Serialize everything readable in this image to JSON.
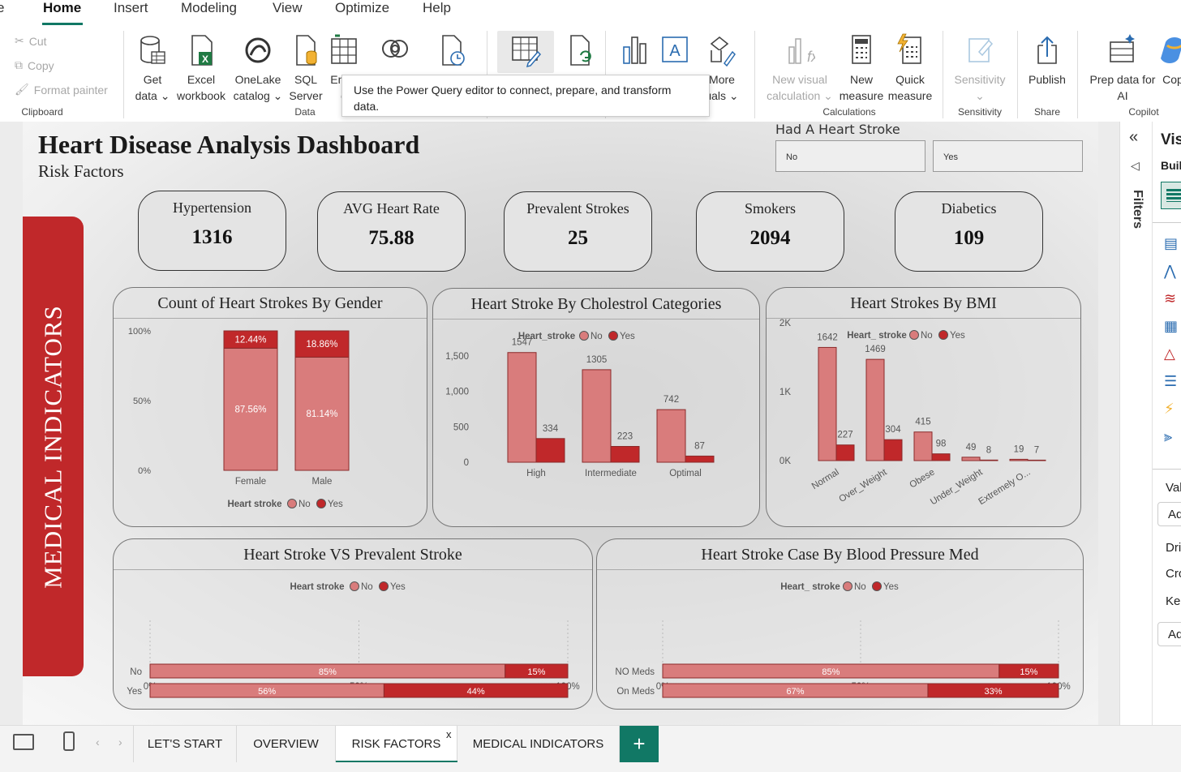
{
  "ribbon": {
    "tabs": [
      "Home",
      "Insert",
      "Modeling",
      "View",
      "Optimize",
      "Help"
    ],
    "clipboard": {
      "cut": "Cut",
      "copy": "Copy",
      "format_painter": "Format painter",
      "label": "Clipboard"
    },
    "data_group": {
      "get_data": [
        "Get",
        "data"
      ],
      "excel": [
        "Excel",
        "workbook"
      ],
      "onelake": [
        "OneLake",
        "catalog"
      ],
      "sql": [
        "SQL",
        "Server"
      ],
      "enter": [
        "Enter",
        "d"
      ],
      "label": "Data"
    },
    "calculations": {
      "new_visual_calc": [
        "New visual",
        "calculation"
      ],
      "new_measure": [
        "New",
        "measure"
      ],
      "quick_measure": [
        "Quick",
        "measure"
      ],
      "label": "Calculations"
    },
    "more_visuals": [
      "More",
      "uals"
    ],
    "sensitivity": {
      "button": "Sensitivity",
      "label": "Sensitivity"
    },
    "share": {
      "publish": "Publish",
      "label": "Share"
    },
    "copilot": {
      "prep": [
        "Prep data for",
        "AI"
      ],
      "cop": "Cop",
      "label": "Copilot"
    },
    "tooltip": "Use the Power Query editor to connect, prepare, and transform data."
  },
  "report": {
    "title": "Heart Disease Analysis Dashboard",
    "subtitle": "Risk Factors",
    "side_banner": "MEDICAL INDICATORS",
    "slicer": {
      "title": "Had A Heart Stroke",
      "options": [
        "No",
        "Yes"
      ]
    },
    "kpis": [
      {
        "label": "Hypertension",
        "value": "1316"
      },
      {
        "label": "AVG Heart Rate",
        "value": "75.88"
      },
      {
        "label": "Prevalent Strokes",
        "value": "25"
      },
      {
        "label": "Smokers",
        "value": "2094"
      },
      {
        "label": "Diabetics",
        "value": "109"
      }
    ],
    "colors": {
      "no": "#d97c7c",
      "yes": "#c0282a",
      "banner": "#c0282a"
    }
  },
  "chart_data": [
    {
      "type": "bar",
      "stacking": "percent",
      "title": "Count of Heart Strokes By Gender",
      "categories": [
        "Female",
        "Male"
      ],
      "series": [
        {
          "name": "No",
          "values": [
            87.56,
            81.14
          ]
        },
        {
          "name": "Yes",
          "values": [
            12.44,
            18.86
          ]
        }
      ],
      "yticks": [
        "0%",
        "50%",
        "100%"
      ],
      "legend_title": "Heart stroke",
      "legend_position": "bottom"
    },
    {
      "type": "bar",
      "title": "Heart Stroke By Cholestrol Categories",
      "categories": [
        "High",
        "Intermediate",
        "Optimal"
      ],
      "series": [
        {
          "name": "No",
          "values": [
            1547,
            1305,
            742
          ]
        },
        {
          "name": "Yes",
          "values": [
            334,
            223,
            87
          ]
        }
      ],
      "yticks": [
        "0",
        "500",
        "1,000",
        "1,500"
      ],
      "ylim": [
        0,
        1750
      ],
      "legend_title": "Heart_stroke",
      "legend_position": "top"
    },
    {
      "type": "bar",
      "title": "Heart Strokes By BMI",
      "categories": [
        "Normal",
        "Over_Weight",
        "Obese",
        "Under_Weight",
        "Extremely O..."
      ],
      "series": [
        {
          "name": "No",
          "values": [
            1642,
            1469,
            415,
            49,
            19
          ]
        },
        {
          "name": "Yes",
          "values": [
            227,
            304,
            98,
            8,
            7
          ]
        }
      ],
      "yticks": [
        "0K",
        "1K",
        "2K"
      ],
      "ylim": [
        0,
        2000
      ],
      "legend_title": "Heart_ stroke",
      "legend_position": "top"
    },
    {
      "type": "bar",
      "orientation": "horizontal",
      "stacking": "percent",
      "title": "Heart Stroke VS Prevalent Stroke",
      "categories": [
        "No",
        "Yes"
      ],
      "series": [
        {
          "name": "No",
          "values": [
            85,
            56
          ]
        },
        {
          "name": "Yes",
          "values": [
            15,
            44
          ]
        }
      ],
      "xticks": [
        "0%",
        "50%",
        "100%"
      ],
      "legend_title": "Heart stroke",
      "legend_position": "top"
    },
    {
      "type": "bar",
      "orientation": "horizontal",
      "stacking": "percent",
      "title": "Heart Stroke Case By Blood Pressure Med",
      "categories": [
        "NO Meds",
        "On Meds"
      ],
      "series": [
        {
          "name": "No",
          "values": [
            85,
            67
          ]
        },
        {
          "name": "Yes",
          "values": [
            15,
            33
          ]
        }
      ],
      "xticks": [
        "0%",
        "50%",
        "100%"
      ],
      "legend_title": "Heart_ stroke",
      "legend_position": "top"
    }
  ],
  "right_pane": {
    "filters": "Filters",
    "visualizations": "Vis",
    "build": "Buil",
    "values": "Val",
    "add": "Ad",
    "drill": "Dri",
    "cross": "Cro",
    "keep": "Kee",
    "add2": "Ad"
  },
  "pages": {
    "tabs": [
      "LET'S START",
      "OVERVIEW",
      "RISK FACTORS",
      "MEDICAL INDICATORS"
    ],
    "active": "RISK FACTORS",
    "close": "x",
    "add": "+"
  }
}
